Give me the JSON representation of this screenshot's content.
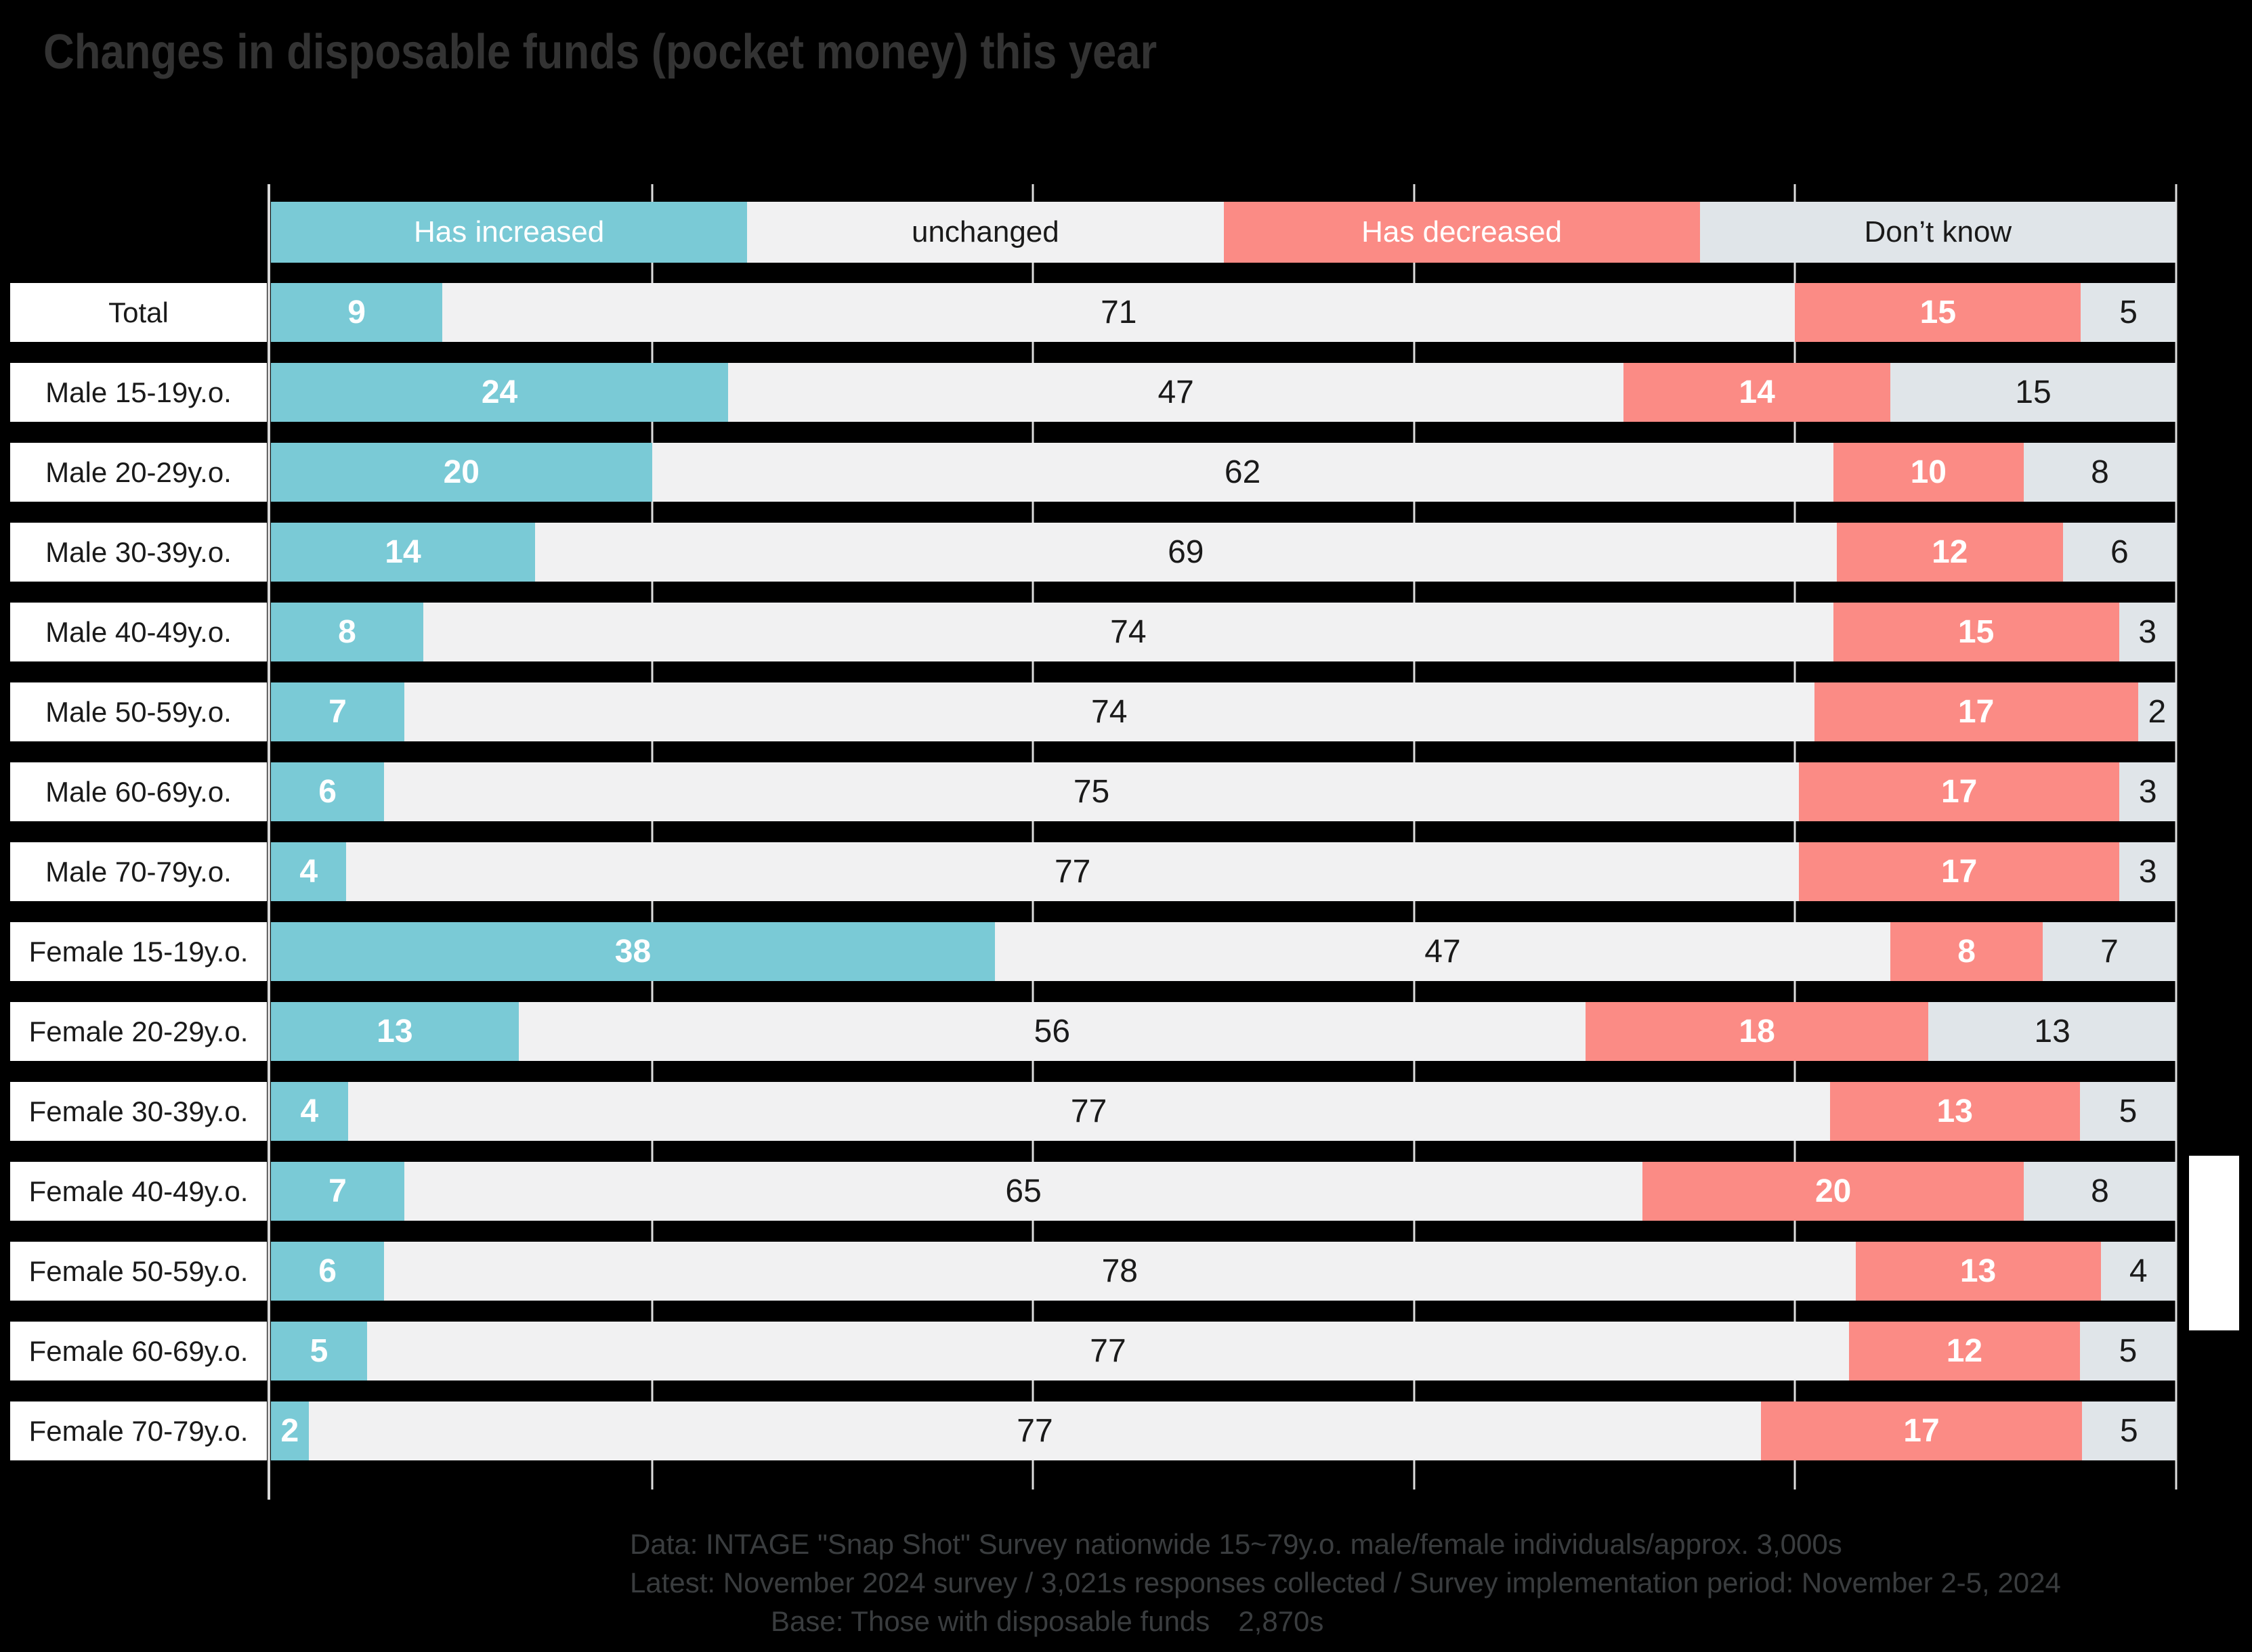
{
  "title": "Changes in disposable funds (pocket money) this year",
  "background_color": "#000000",
  "chart_data": {
    "type": "bar",
    "orientation": "horizontal-stacked",
    "unit": "%",
    "xlim": [
      0,
      100
    ],
    "gridlines_percent": [
      20,
      40,
      60,
      80,
      100
    ],
    "legend_position": "top",
    "categories": [
      "Total",
      "Male 15-19y.o.",
      "Male 20-29y.o.",
      "Male 30-39y.o.",
      "Male 40-49y.o.",
      "Male 50-59y.o.",
      "Male 60-69y.o.",
      "Male 70-79y.o.",
      "Female 15-19y.o.",
      "Female 20-29y.o.",
      "Female 30-39y.o.",
      "Female 40-49y.o.",
      "Female 50-59y.o.",
      "Female 60-69y.o.",
      "Female 70-79y.o."
    ],
    "series": [
      {
        "name": "Has increased",
        "color": "#7ACAD6",
        "text_color": "#FFFFFF",
        "values": [
          9,
          24,
          20,
          14,
          8,
          7,
          6,
          4,
          38,
          13,
          4,
          7,
          6,
          5,
          2
        ]
      },
      {
        "name": "unchanged",
        "color": "#F1F1F2",
        "text_color": "#1A1A1A",
        "values": [
          71,
          47,
          62,
          69,
          74,
          74,
          75,
          77,
          47,
          56,
          77,
          65,
          78,
          77,
          77
        ]
      },
      {
        "name": "Has decreased",
        "color": "#FB8B85",
        "text_color": "#FFFFFF",
        "values": [
          15,
          14,
          10,
          12,
          15,
          17,
          17,
          17,
          8,
          18,
          13,
          20,
          13,
          12,
          17
        ]
      },
      {
        "name": "Don’t know",
        "color": "#E0E5E9",
        "text_color": "#1A1A1A",
        "values": [
          5,
          15,
          8,
          6,
          3,
          2,
          3,
          3,
          7,
          13,
          5,
          8,
          4,
          5,
          5
        ]
      }
    ]
  },
  "footer": {
    "line1": "Data: INTAGE \"Snap Shot\" Survey nationwide 15~79y.o. male/female individuals/approx. 3,000s",
    "line2": "Latest: November 2024 survey / 3,021s responses collected / Survey implementation period: November 2-5, 2024",
    "line3": "Base: Those with disposable funds　2,870s"
  }
}
